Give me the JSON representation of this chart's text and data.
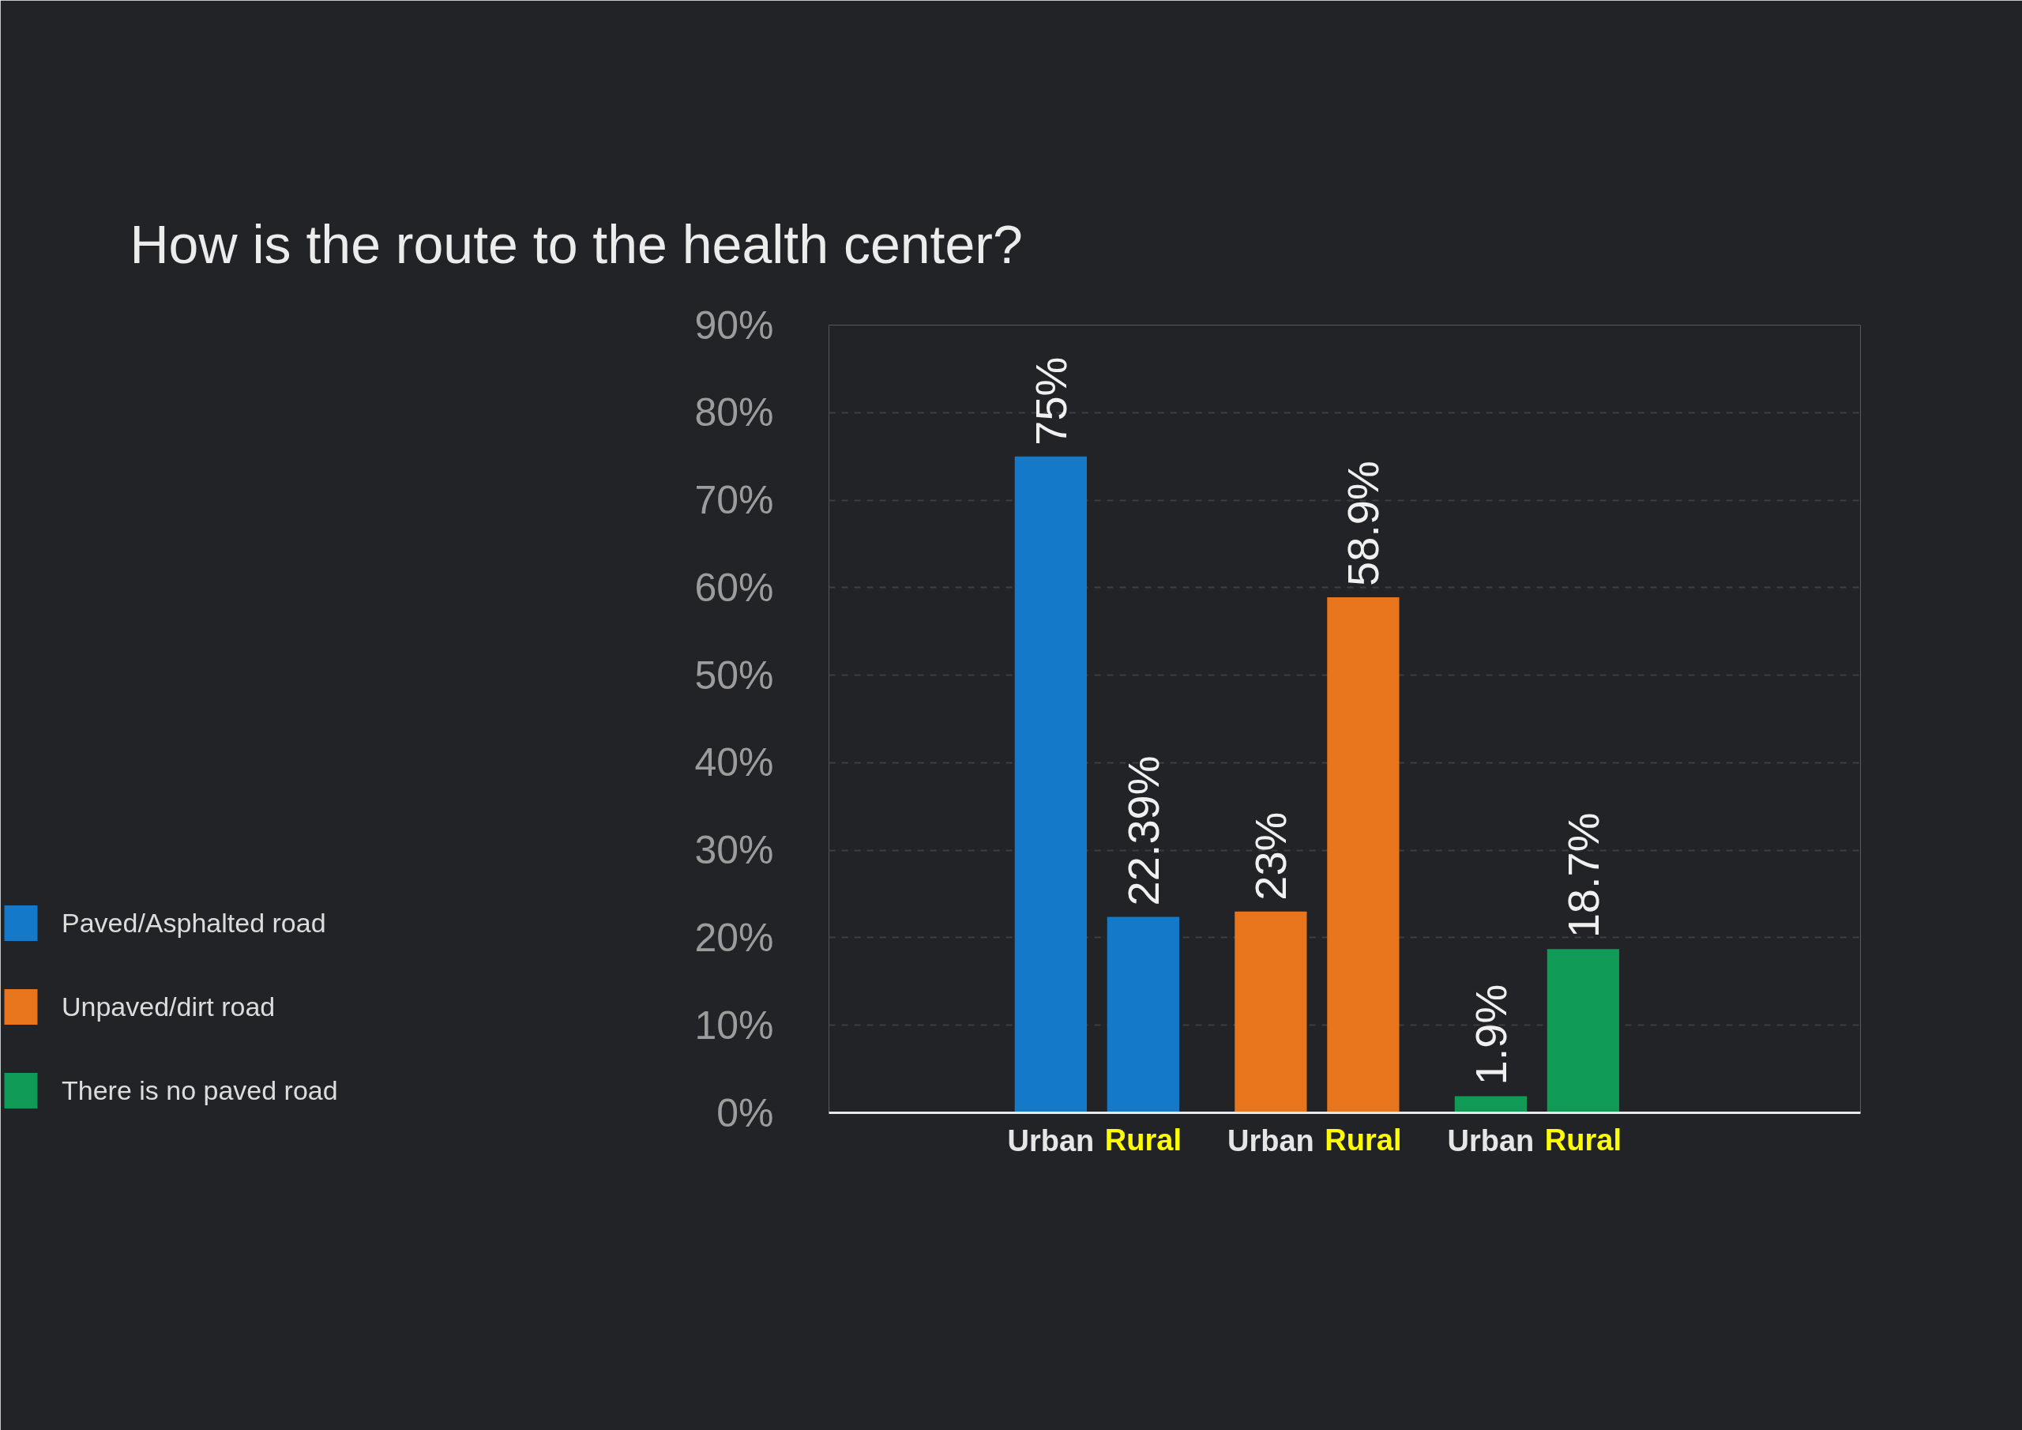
{
  "chart_data": {
    "type": "bar",
    "title": "How is the route to the health center?",
    "categories": [
      "Urban",
      "Rural",
      "Urban",
      "Rural",
      "Urban",
      "Rural"
    ],
    "series": [
      {
        "name": "Paved/Asphalted road",
        "color": "#1479c8",
        "values": [
          75,
          22.39,
          null,
          null,
          null,
          null
        ],
        "value_labels": [
          "75%",
          "22.39%",
          null,
          null,
          null,
          null
        ]
      },
      {
        "name": "Unpaved/dirt road",
        "color": "#e8741c",
        "values": [
          null,
          null,
          23,
          58.9,
          null,
          null
        ],
        "value_labels": [
          null,
          null,
          "23%",
          "58.9%",
          null,
          null
        ]
      },
      {
        "name": "There is no paved road",
        "color": "#0f9b55",
        "values": [
          null,
          null,
          null,
          null,
          1.9,
          18.7
        ],
        "value_labels": [
          null,
          null,
          null,
          null,
          "1.9%",
          "18.7%"
        ]
      }
    ],
    "ylim": [
      0,
      90
    ],
    "yticks": [
      {
        "value": 0,
        "label": "0%"
      },
      {
        "value": 10,
        "label": "10%"
      },
      {
        "value": 20,
        "label": "20%"
      },
      {
        "value": 30,
        "label": "30%"
      },
      {
        "value": 40,
        "label": "40%"
      },
      {
        "value": 50,
        "label": "50%"
      },
      {
        "value": 60,
        "label": "60%"
      },
      {
        "value": 70,
        "label": "70%"
      },
      {
        "value": 80,
        "label": "80%"
      },
      {
        "value": 90,
        "label": "90%"
      }
    ],
    "grid": "y",
    "legend": "left"
  }
}
